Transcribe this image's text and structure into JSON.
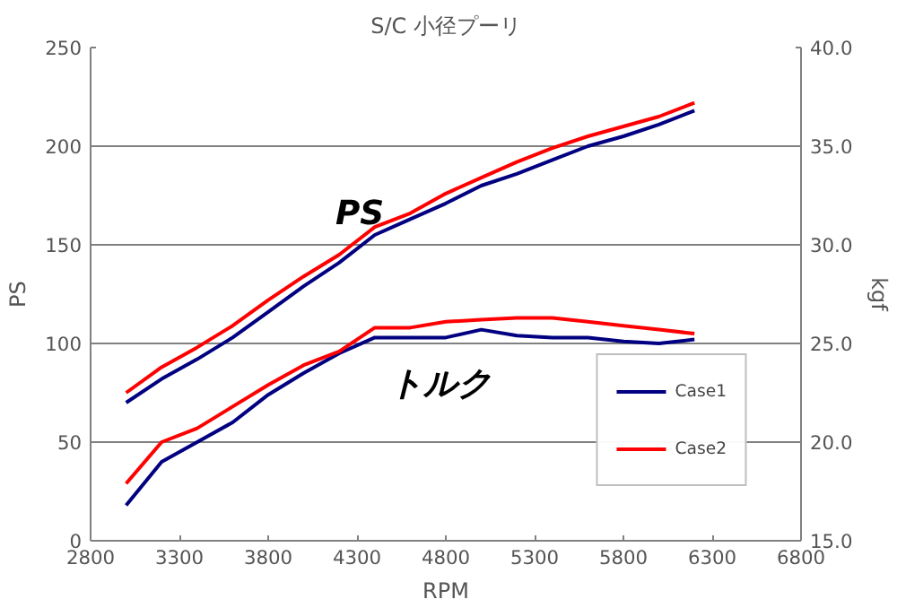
{
  "chart_data": {
    "type": "line",
    "title": "S/C 小径プーリ",
    "xlabel": "RPM",
    "ylabel": "PS",
    "y2label": "kgf",
    "x": [
      3000,
      3200,
      3400,
      3600,
      3800,
      4000,
      4200,
      4400,
      4600,
      4800,
      5000,
      5200,
      5400,
      5600,
      5800,
      6000,
      6200
    ],
    "series": [
      {
        "name": "Case1",
        "color": "#000080",
        "values": [
          70,
          82,
          92,
          103,
          116,
          129,
          141,
          155,
          163,
          171,
          180,
          186,
          193,
          200,
          205,
          211,
          218
        ]
      },
      {
        "name": "Case2",
        "color": "#ff0000",
        "values": [
          75,
          88,
          98,
          109,
          122,
          134,
          145,
          159,
          166,
          176,
          184,
          192,
          199,
          205,
          210,
          215,
          222
        ]
      },
      {
        "color": "#000080",
        "axis": "y2",
        "values": [
          16.8,
          19.0,
          20.0,
          21.0,
          22.4,
          23.5,
          24.5,
          25.3,
          25.3,
          25.3,
          25.7,
          25.4,
          25.3,
          25.3,
          25.1,
          25.0,
          25.2
        ]
      },
      {
        "color": "#ff0000",
        "axis": "y2",
        "values": [
          17.9,
          20.0,
          20.7,
          21.8,
          22.9,
          23.9,
          24.6,
          25.8,
          25.8,
          26.1,
          26.2,
          26.3,
          26.3,
          26.1,
          25.9,
          25.7,
          25.5
        ]
      }
    ],
    "xlim": [
      2800,
      6800
    ],
    "xticks": [
      2800,
      3300,
      3800,
      4300,
      4800,
      5300,
      5800,
      6300,
      6800
    ],
    "ylim": [
      0,
      250
    ],
    "yticks": [
      0,
      50,
      100,
      150,
      200,
      250
    ],
    "y2lim": [
      15,
      40
    ],
    "y2ticks": [
      {
        "value": 15,
        "label": "15.0"
      },
      {
        "value": 20,
        "label": "20.0"
      },
      {
        "value": 25,
        "label": "25.0"
      },
      {
        "value": 30,
        "label": "30.0"
      },
      {
        "value": 35,
        "label": "35.0"
      },
      {
        "value": 40,
        "label": "40.0"
      }
    ],
    "annotations": [
      "PS",
      "トルク"
    ],
    "grid": "y",
    "legend": "bottom right",
    "marker": "none",
    "line_style": "solid"
  }
}
